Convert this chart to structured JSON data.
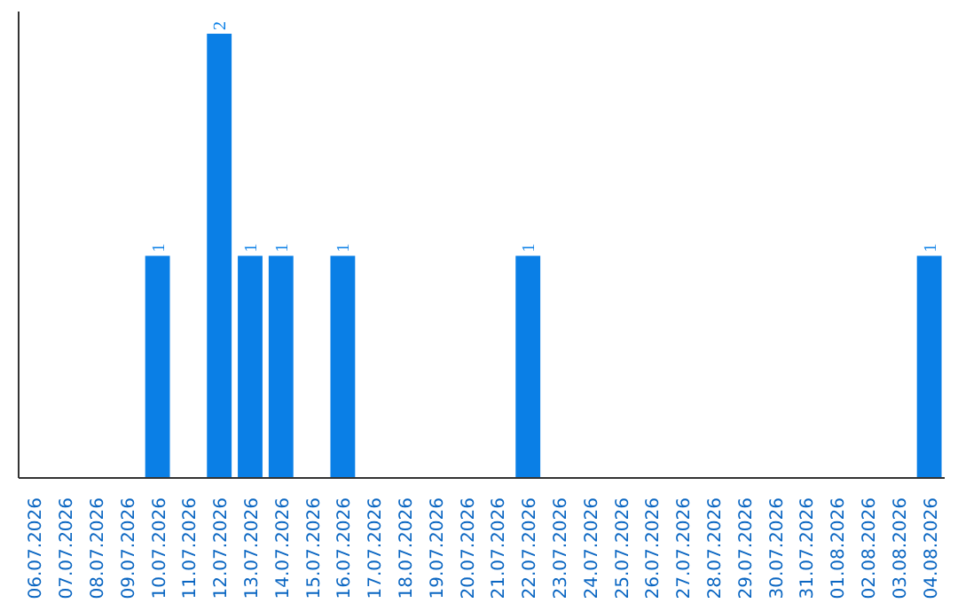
{
  "chart_data": {
    "type": "bar",
    "categories": [
      "06.07.2026",
      "07.07.2026",
      "08.07.2026",
      "09.07.2026",
      "10.07.2026",
      "11.07.2026",
      "12.07.2026",
      "13.07.2026",
      "14.07.2026",
      "15.07.2026",
      "16.07.2026",
      "17.07.2026",
      "18.07.2026",
      "19.07.2026",
      "20.07.2026",
      "21.07.2026",
      "22.07.2026",
      "23.07.2026",
      "24.07.2026",
      "25.07.2026",
      "26.07.2026",
      "27.07.2026",
      "28.07.2026",
      "29.07.2026",
      "30.07.2026",
      "31.07.2026",
      "01.08.2026",
      "02.08.2026",
      "03.08.2026",
      "04.08.2026"
    ],
    "values": [
      0,
      0,
      0,
      0,
      1,
      0,
      2,
      1,
      1,
      0,
      1,
      0,
      0,
      0,
      0,
      0,
      1,
      0,
      0,
      0,
      0,
      0,
      0,
      0,
      0,
      0,
      0,
      0,
      0,
      1
    ],
    "value_labels": [
      null,
      null,
      null,
      null,
      "1",
      null,
      "2",
      "1",
      "1",
      null,
      "1",
      null,
      null,
      null,
      null,
      null,
      "1",
      null,
      null,
      null,
      null,
      null,
      null,
      null,
      null,
      null,
      null,
      null,
      null,
      "1"
    ],
    "color": "#0a7fe6",
    "grid": false
  }
}
